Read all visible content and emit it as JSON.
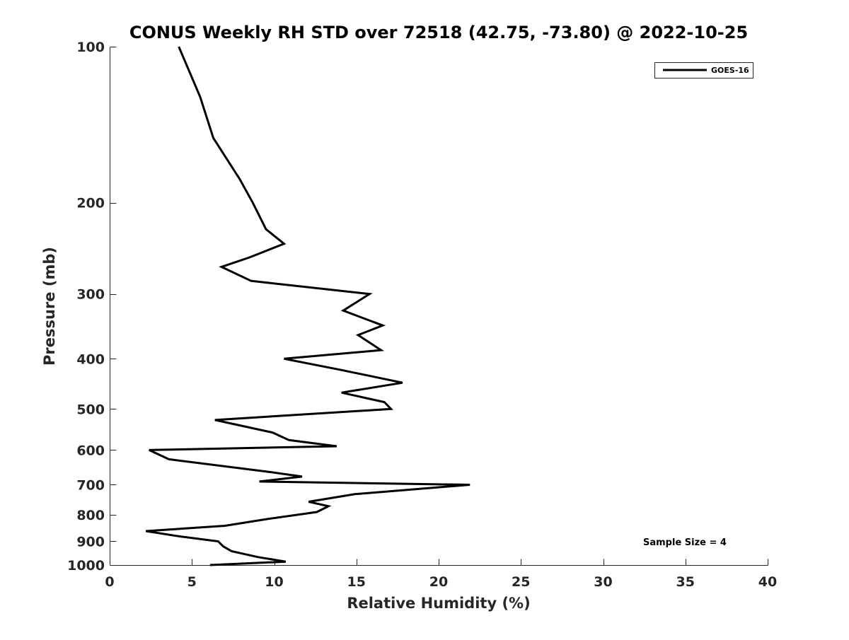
{
  "chart_data": {
    "type": "line",
    "title": "CONUS Weekly RH STD over 72518 (42.75, -73.80) @ 2022-10-25",
    "xlabel": "Relative Humidity (%)",
    "ylabel": "Pressure (mb)",
    "xlim": [
      0,
      40
    ],
    "ylim": [
      100,
      1000
    ],
    "y_scale": "log",
    "y_reversed": true,
    "x_ticks": [
      0,
      5,
      10,
      15,
      20,
      25,
      30,
      35,
      40
    ],
    "y_ticks": [
      100,
      200,
      300,
      400,
      500,
      600,
      700,
      800,
      900,
      1000
    ],
    "grid": false,
    "legend_position": "top-right",
    "line_color": "#000000",
    "annotation": "Sample Size = 4",
    "series": [
      {
        "name": "GOES-16",
        "points": [
          [
            4.2,
            100
          ],
          [
            5.5,
            125
          ],
          [
            6.3,
            150
          ],
          [
            7.9,
            180
          ],
          [
            8.7,
            200
          ],
          [
            9.5,
            225
          ],
          [
            10.6,
            240
          ],
          [
            8.5,
            255
          ],
          [
            6.8,
            266
          ],
          [
            8.6,
            283
          ],
          [
            15.8,
            300
          ],
          [
            14.2,
            323
          ],
          [
            16.6,
            345
          ],
          [
            15.1,
            360
          ],
          [
            16.5,
            385
          ],
          [
            10.6,
            400
          ],
          [
            14.0,
            420
          ],
          [
            17.8,
            445
          ],
          [
            14.1,
            465
          ],
          [
            16.7,
            485
          ],
          [
            17.1,
            500
          ],
          [
            6.4,
            525
          ],
          [
            9.9,
            555
          ],
          [
            10.9,
            574
          ],
          [
            13.8,
            590
          ],
          [
            2.4,
            600
          ],
          [
            3.6,
            625
          ],
          [
            9.5,
            660
          ],
          [
            11.7,
            675
          ],
          [
            9.1,
            690
          ],
          [
            21.9,
            700
          ],
          [
            14.9,
            730
          ],
          [
            12.1,
            755
          ],
          [
            13.3,
            770
          ],
          [
            12.6,
            790
          ],
          [
            9.6,
            815
          ],
          [
            7.0,
            840
          ],
          [
            2.2,
            860
          ],
          [
            4.2,
            880
          ],
          [
            6.6,
            900
          ],
          [
            6.9,
            920
          ],
          [
            7.4,
            940
          ],
          [
            9.0,
            965
          ],
          [
            10.7,
            985
          ],
          [
            6.1,
            1000
          ]
        ]
      }
    ]
  }
}
